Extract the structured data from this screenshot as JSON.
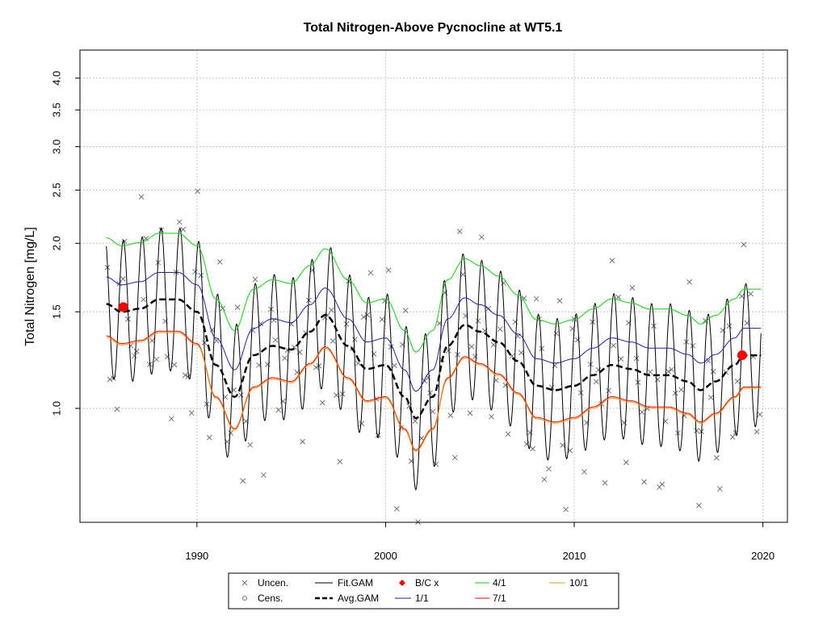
{
  "chart_data": {
    "type": "line",
    "title": "Total Nitrogen-Above Pycnocline at WT5.1",
    "xlabel": "",
    "ylabel": "Total Nitrogen [mg/L]",
    "y_scale": "log",
    "xlim": [
      1983.8,
      2021.3
    ],
    "ylim": [
      0.62,
      4.5
    ],
    "x_ticks": [
      "1990",
      "2000",
      "2010",
      "2020"
    ],
    "y_ticks": [
      "1.0",
      "1.5",
      "2.0",
      "2.5",
      "3.0",
      "3.5",
      "4.0"
    ],
    "grid": true,
    "legend_placement": "bottom",
    "colors": {
      "uncensored": "#6b7280",
      "fit_gam": "#000000",
      "avg_gam": "#000000",
      "bc": "#ff0000",
      "ratio_1_1": "#1f1fb4",
      "ratio_4_1": "#00dd00",
      "ratio_7_1": "#ff0000",
      "ratio_10_1": "#ff9900",
      "grid": "#c8c8c8"
    },
    "legend": [
      {
        "label": "Uncen.",
        "symbol": "x"
      },
      {
        "label": "Cens.",
        "symbol": "circle"
      },
      {
        "label": "Fit.GAM",
        "symbol": "line"
      },
      {
        "label": "Avg.GAM",
        "symbol": "dash"
      },
      {
        "label": "B/C x",
        "symbol": "diamond"
      },
      {
        "label": "1/1",
        "symbol": "line"
      },
      {
        "label": "4/1",
        "symbol": "line"
      },
      {
        "label": "7/1",
        "symbol": "line"
      },
      {
        "label": "10/1",
        "symbol": "line"
      }
    ],
    "avg_gam": {
      "x": [
        1985.2,
        1986,
        1987,
        1988,
        1989,
        1990,
        1991,
        1992,
        1993,
        1994,
        1995,
        1996,
        1996.8,
        1998,
        1999,
        2000,
        2001,
        2001.6,
        2002.5,
        2003.3,
        2004.2,
        2005,
        2006,
        2007,
        2008,
        2009,
        2010,
        2011,
        2012,
        2013,
        2014,
        2015,
        2016,
        2016.7,
        2017.5,
        2018.5,
        2019,
        2019.9
      ],
      "y": [
        1.55,
        1.5,
        1.52,
        1.58,
        1.58,
        1.5,
        1.2,
        1.05,
        1.25,
        1.3,
        1.28,
        1.38,
        1.48,
        1.3,
        1.18,
        1.2,
        1.05,
        0.96,
        1.05,
        1.3,
        1.42,
        1.38,
        1.32,
        1.22,
        1.1,
        1.08,
        1.1,
        1.15,
        1.2,
        1.18,
        1.15,
        1.15,
        1.12,
        1.08,
        1.12,
        1.2,
        1.25,
        1.25
      ]
    },
    "series": [
      {
        "name": "1/1",
        "offset_ratio": 1.12
      },
      {
        "name": "4/1",
        "offset_ratio": 1.32
      },
      {
        "name": "7/1",
        "offset_ratio": 0.875
      },
      {
        "name": "10/1",
        "offset_ratio": 0.87
      }
    ],
    "fit_gam_amplitude_ratio": 1.35,
    "bc_points": [
      {
        "x": 1986.1,
        "y": 1.53
      },
      {
        "x": 2018.9,
        "y": 1.25
      }
    ]
  }
}
